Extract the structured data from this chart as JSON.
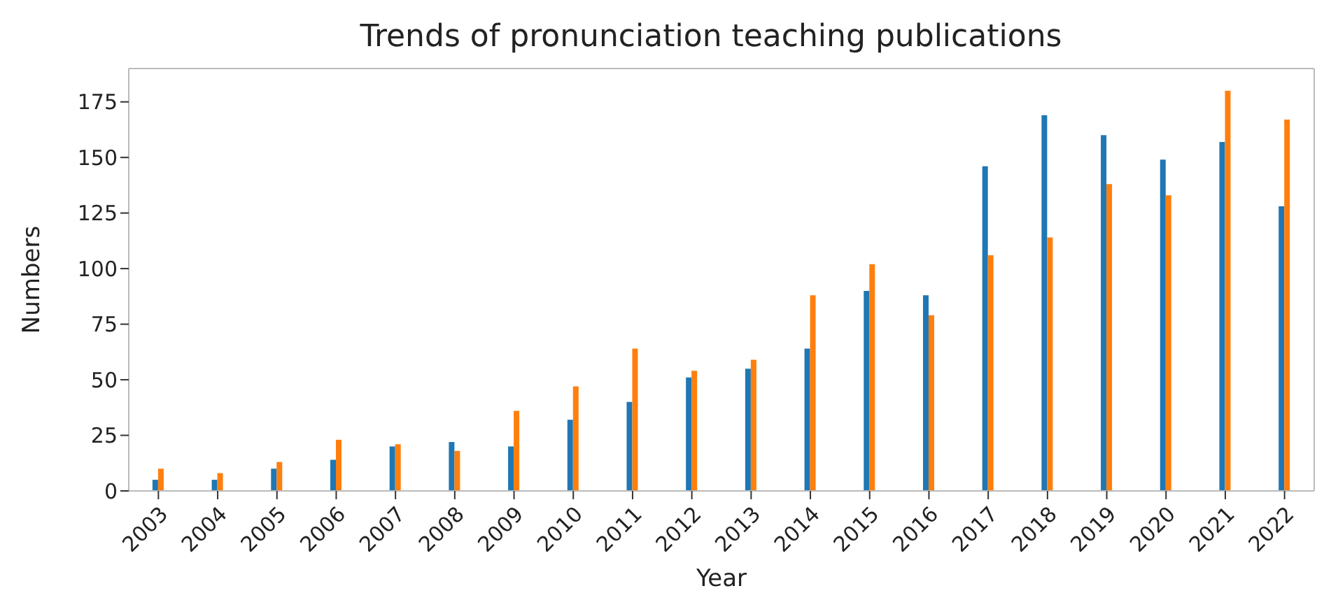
{
  "chart_data": {
    "type": "bar",
    "title": "Trends of pronunciation teaching publications",
    "xlabel": "Year",
    "ylabel": "Numbers",
    "categories": [
      "2003",
      "2004",
      "2005",
      "2006",
      "2007",
      "2008",
      "2009",
      "2010",
      "2011",
      "2012",
      "2013",
      "2014",
      "2015",
      "2016",
      "2017",
      "2018",
      "2019",
      "2020",
      "2021",
      "2022"
    ],
    "series": [
      {
        "color": "#1f77b4",
        "values": [
          5,
          5,
          10,
          14,
          20,
          22,
          20,
          32,
          40,
          51,
          55,
          64,
          90,
          88,
          146,
          169,
          160,
          149,
          157,
          128
        ]
      },
      {
        "color": "#ff7f0e",
        "values": [
          10,
          8,
          13,
          23,
          21,
          18,
          36,
          47,
          64,
          54,
          59,
          88,
          102,
          79,
          106,
          114,
          138,
          133,
          180,
          167
        ]
      }
    ],
    "ylim": [
      0,
      190
    ],
    "yticks": [
      0,
      25,
      50,
      75,
      100,
      125,
      150,
      175
    ],
    "grid": false,
    "legend": false
  }
}
